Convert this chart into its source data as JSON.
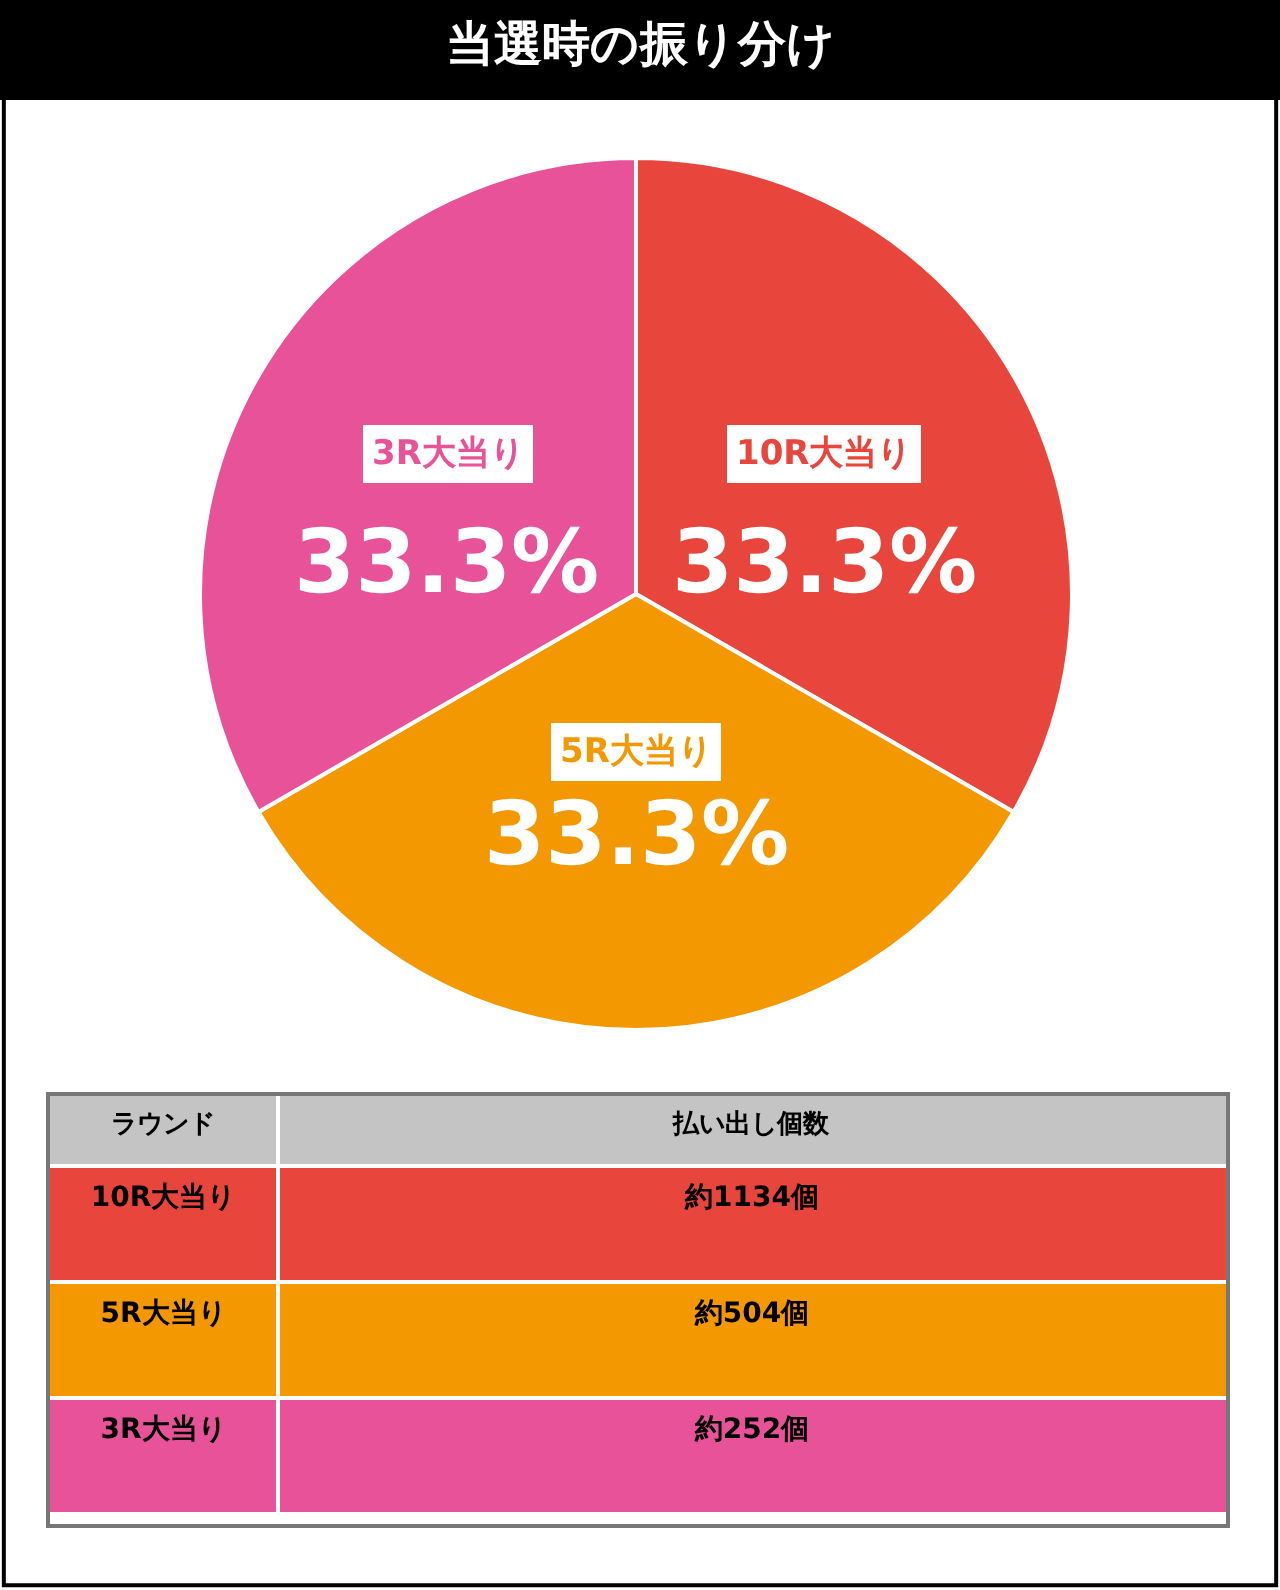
{
  "chart_data": {
    "type": "pie",
    "title": "当選時の振り分け",
    "categories": [
      "10R大当り",
      "5R大当り",
      "3R大当り"
    ],
    "values": [
      33.3,
      33.3,
      33.3
    ],
    "value_labels": [
      "33.3%",
      "33.3%",
      "33.3%"
    ],
    "colors": [
      "#e8453c",
      "#f39800",
      "#e85298"
    ],
    "annotations": [
      "ラウンド",
      "払い出し個数",
      "約1134個",
      "約504個",
      "約252個"
    ],
    "legend": false
  }
}
